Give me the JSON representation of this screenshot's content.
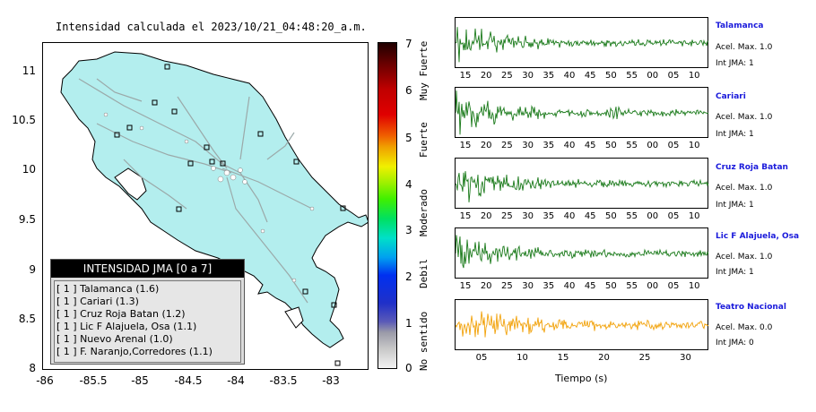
{
  "title": "Intensidad calculada el 2023/10/21_04:48:20_a.m.",
  "map": {
    "lat_ticks": [
      "11",
      "10.5",
      "10",
      "9.5",
      "9",
      "8.5",
      "8"
    ],
    "lon_ticks": [
      "-86",
      "-85.5",
      "-85",
      "-84.5",
      "-84",
      "-83.5",
      "-83"
    ],
    "land_color": "#b3eeee",
    "station_count_shown": 16
  },
  "legend": {
    "title": "INTENSIDAD JMA [0 a 7]",
    "rows": [
      "[ 1 ]  Talamanca (1.6)",
      "[ 1 ]  Cariari (1.3)",
      "[ 1 ]  Cruz Roja Batan (1.2)",
      "[ 1 ]  Lic F Alajuela, Osa (1.1)",
      "[ 1 ]  Nuevo Arenal (1.0)",
      "[ 1 ]  F. Naranjo,Corredores (1.1)"
    ]
  },
  "colorbar": {
    "ticks": [
      "7",
      "6",
      "5",
      "4",
      "3",
      "2",
      "1",
      "0"
    ],
    "labels": [
      "Muy Fuerte",
      "Fuerte",
      "Moderado",
      "Debil",
      "No sentido"
    ]
  },
  "traces": [
    {
      "name": "Talamanca",
      "acel": "Acel. Max. 1.0",
      "int": "Int JMA: 1",
      "color": "#1a7a1a",
      "ticks": [
        "15",
        "20",
        "25",
        "30",
        "35",
        "40",
        "45",
        "50",
        "55",
        "00",
        "05",
        "10"
      ]
    },
    {
      "name": "Cariari",
      "acel": "Acel. Max. 1.0",
      "int": "Int JMA: 1",
      "color": "#1a7a1a",
      "ticks": [
        "15",
        "20",
        "25",
        "30",
        "35",
        "40",
        "45",
        "50",
        "55",
        "00",
        "05",
        "10"
      ]
    },
    {
      "name": "Cruz Roja Batan",
      "acel": "Acel. Max. 1.0",
      "int": "Int JMA: 1",
      "color": "#1a7a1a",
      "ticks": [
        "15",
        "20",
        "25",
        "30",
        "35",
        "40",
        "45",
        "50",
        "55",
        "00",
        "05",
        "10"
      ]
    },
    {
      "name": "Lic F Alajuela, Osa",
      "acel": "Acel. Max. 1.0",
      "int": "Int JMA: 1",
      "color": "#1a7a1a",
      "ticks": [
        "15",
        "20",
        "25",
        "30",
        "35",
        "40",
        "45",
        "50",
        "55",
        "00",
        "05",
        "10"
      ]
    },
    {
      "name": "Teatro Nacional",
      "acel": "Acel. Max. 0.0",
      "int": "Int JMA: 0",
      "color": "#f2a20a",
      "ticks": [
        "05",
        "10",
        "15",
        "20",
        "25",
        "30"
      ]
    }
  ],
  "time_axis_label": "Tiempo (s)"
}
